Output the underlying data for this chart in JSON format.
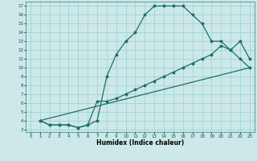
{
  "xlabel": "Humidex (Indice chaleur)",
  "bg_color": "#cce8e8",
  "grid_color": "#9ecece",
  "line_color": "#1a7068",
  "xlim_min": -0.5,
  "xlim_max": 23.5,
  "ylim_min": 2.7,
  "ylim_max": 17.5,
  "xticks": [
    0,
    1,
    2,
    3,
    4,
    5,
    6,
    7,
    8,
    9,
    10,
    11,
    12,
    13,
    14,
    15,
    16,
    17,
    18,
    19,
    20,
    21,
    22,
    23
  ],
  "yticks": [
    3,
    4,
    5,
    6,
    7,
    8,
    9,
    10,
    11,
    12,
    13,
    14,
    15,
    16,
    17
  ],
  "curve1_x": [
    1,
    2,
    3,
    4,
    5,
    6,
    7,
    8,
    9,
    10,
    11,
    12,
    13,
    14,
    15,
    16,
    17,
    18,
    19,
    20,
    21,
    22,
    23
  ],
  "curve1_y": [
    4.0,
    3.5,
    3.5,
    3.5,
    3.2,
    3.5,
    4.0,
    9.0,
    11.5,
    13.0,
    14.0,
    16.0,
    17.0,
    17.0,
    17.0,
    17.0,
    16.0,
    15.0,
    13.0,
    13.0,
    12.0,
    11.0,
    10.0
  ],
  "curve2_x": [
    1,
    2,
    3,
    4,
    5,
    6,
    7,
    8,
    9,
    10,
    11,
    12,
    13,
    14,
    15,
    16,
    17,
    18,
    19,
    20,
    21,
    22,
    23
  ],
  "curve2_y": [
    4.0,
    3.5,
    3.5,
    3.5,
    3.2,
    3.5,
    6.2,
    6.2,
    6.5,
    7.0,
    7.5,
    8.0,
    8.5,
    9.0,
    9.5,
    10.0,
    10.5,
    11.0,
    11.5,
    12.5,
    12.0,
    13.0,
    11.0
  ],
  "line3_x": [
    1,
    23
  ],
  "line3_y": [
    4.0,
    10.0
  ]
}
